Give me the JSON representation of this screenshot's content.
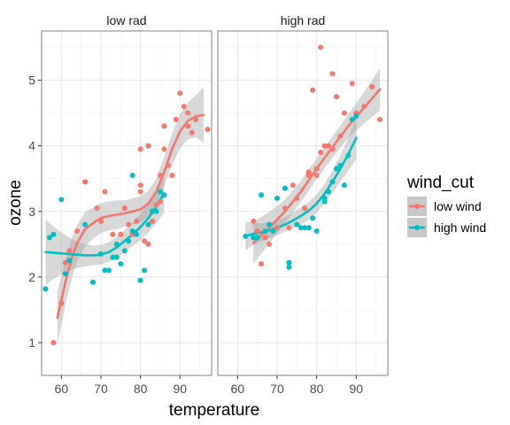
{
  "chart_data": {
    "type": "scatter",
    "xlabel": "temperature",
    "ylabel": "ozone",
    "xlim": [
      55,
      98
    ],
    "ylim": [
      0.5,
      5.75
    ],
    "x_ticks": [
      60,
      70,
      80,
      90
    ],
    "y_ticks": [
      1,
      2,
      3,
      4,
      5
    ],
    "grid": true,
    "facet_labels": [
      "low rad",
      "high rad"
    ],
    "legend": {
      "title": "wind_cut",
      "position": "right",
      "entries": [
        "low wind",
        "high wind"
      ]
    },
    "colors": {
      "low wind": "#F8766D",
      "high wind": "#00BFC4",
      "band": "#c8c8c8"
    },
    "panels": [
      {
        "label": "low rad",
        "series": [
          {
            "name": "low wind",
            "points": [
              [
                58,
                1.0
              ],
              [
                60,
                1.6
              ],
              [
                61,
                2.22
              ],
              [
                62,
                2.4
              ],
              [
                64,
                2.7
              ],
              [
                66,
                3.45
              ],
              [
                69,
                3.05
              ],
              [
                70,
                2.85
              ],
              [
                71,
                3.3
              ],
              [
                73,
                2.65
              ],
              [
                75,
                2.65
              ],
              [
                76,
                3.05
              ],
              [
                77,
                2.8
              ],
              [
                78,
                2.65
              ],
              [
                79,
                2.85
              ],
              [
                80,
                3.3
              ],
              [
                80,
                3.4
              ],
              [
                80,
                3.95
              ],
              [
                81,
                2.55
              ],
              [
                82,
                4.0
              ],
              [
                82,
                2.5
              ],
              [
                83,
                2.85
              ],
              [
                84,
                3.1
              ],
              [
                85,
                3.15
              ],
              [
                85,
                3.55
              ],
              [
                86,
                3.95
              ],
              [
                86,
                4.3
              ],
              [
                87,
                3.7
              ],
              [
                88,
                3.55
              ],
              [
                89,
                4.4
              ],
              [
                90,
                4.8
              ],
              [
                91,
                4.6
              ],
              [
                92,
                4.3
              ],
              [
                92,
                4.5
              ],
              [
                93,
                4.2
              ],
              [
                94,
                4.4
              ],
              [
                97,
                4.25
              ]
            ],
            "smooth": [
              [
                59,
                1.38
              ],
              [
                60,
                1.65
              ],
              [
                61,
                1.92
              ],
              [
                62,
                2.15
              ],
              [
                63,
                2.35
              ],
              [
                64,
                2.52
              ],
              [
                66,
                2.73
              ],
              [
                68,
                2.82
              ],
              [
                70,
                2.9
              ],
              [
                72,
                2.93
              ],
              [
                74,
                2.95
              ],
              [
                76,
                2.97
              ],
              [
                78,
                3.0
              ],
              [
                80,
                3.03
              ],
              [
                82,
                3.12
              ],
              [
                84,
                3.3
              ],
              [
                86,
                3.6
              ],
              [
                88,
                3.95
              ],
              [
                90,
                4.22
              ],
              [
                92,
                4.38
              ],
              [
                94,
                4.45
              ],
              [
                96,
                4.47
              ]
            ],
            "band_halfwidth": [
              0.4,
              0.38,
              0.35,
              0.32,
              0.3,
              0.28,
              0.26,
              0.24,
              0.23,
              0.22,
              0.22,
              0.2,
              0.2,
              0.2,
              0.2,
              0.2,
              0.22,
              0.24,
              0.26,
              0.28,
              0.32,
              0.42
            ]
          },
          {
            "name": "high wind",
            "points": [
              [
                56,
                1.82
              ],
              [
                57,
                2.6
              ],
              [
                58,
                2.65
              ],
              [
                60,
                3.18
              ],
              [
                61,
                2.05
              ],
              [
                62,
                2.25
              ],
              [
                66,
                2.8
              ],
              [
                68,
                1.92
              ],
              [
                70,
                2.35
              ],
              [
                71,
                2.1
              ],
              [
                72,
                2.1
              ],
              [
                73,
                2.3
              ],
              [
                74,
                2.3
              ],
              [
                74,
                2.5
              ],
              [
                75,
                2.2
              ],
              [
                76,
                2.4
              ],
              [
                77,
                2.55
              ],
              [
                78,
                2.7
              ],
              [
                78,
                3.55
              ],
              [
                79,
                2.65
              ],
              [
                80,
                1.95
              ],
              [
                81,
                2.1
              ],
              [
                82,
                2.8
              ],
              [
                83,
                3.0
              ],
              [
                84,
                3.0
              ],
              [
                85,
                3.3
              ],
              [
                86,
                3.25
              ]
            ],
            "smooth": [
              [
                56,
                2.38
              ],
              [
                58,
                2.37
              ],
              [
                60,
                2.36
              ],
              [
                62,
                2.35
              ],
              [
                64,
                2.34
              ],
              [
                66,
                2.33
              ],
              [
                68,
                2.33
              ],
              [
                70,
                2.34
              ],
              [
                72,
                2.38
              ],
              [
                74,
                2.45
              ],
              [
                76,
                2.55
              ],
              [
                78,
                2.65
              ],
              [
                80,
                2.76
              ],
              [
                82,
                2.9
              ],
              [
                84,
                3.07
              ],
              [
                86,
                3.28
              ]
            ],
            "band_halfwidth": [
              0.5,
              0.4,
              0.32,
              0.25,
              0.2,
              0.17,
              0.15,
              0.15,
              0.15,
              0.16,
              0.17,
              0.18,
              0.2,
              0.22,
              0.25,
              0.3
            ]
          }
        ]
      },
      {
        "label": "high rad",
        "series": [
          {
            "name": "low wind",
            "points": [
              [
                64,
                2.85
              ],
              [
                65,
                2.7
              ],
              [
                66,
                2.2
              ],
              [
                67,
                2.6
              ],
              [
                68,
                2.5
              ],
              [
                70,
                2.75
              ],
              [
                72,
                3.05
              ],
              [
                73,
                2.75
              ],
              [
                74,
                3.4
              ],
              [
                75,
                3.2
              ],
              [
                77,
                3.05
              ],
              [
                78,
                3.55
              ],
              [
                78,
                3.6
              ],
              [
                79,
                4.85
              ],
              [
                80,
                3.65
              ],
              [
                80,
                3.55
              ],
              [
                81,
                3.9
              ],
              [
                81,
                5.5
              ],
              [
                82,
                4.0
              ],
              [
                83,
                4.0
              ],
              [
                84,
                5.1
              ],
              [
                84,
                3.95
              ],
              [
                85,
                4.75
              ],
              [
                86,
                4.15
              ],
              [
                87,
                4.5
              ],
              [
                89,
                4.95
              ],
              [
                90,
                4.5
              ],
              [
                92,
                4.6
              ],
              [
                94,
                4.9
              ],
              [
                96,
                4.4
              ]
            ],
            "smooth": [
              [
                64,
                2.52
              ],
              [
                68,
                2.75
              ],
              [
                72,
                3.0
              ],
              [
                76,
                3.3
              ],
              [
                80,
                3.65
              ],
              [
                84,
                3.98
              ],
              [
                88,
                4.3
              ],
              [
                92,
                4.58
              ],
              [
                96,
                4.86
              ]
            ],
            "band_halfwidth": [
              0.32,
              0.24,
              0.18,
              0.16,
              0.16,
              0.16,
              0.18,
              0.24,
              0.32
            ]
          },
          {
            "name": "high wind",
            "points": [
              [
                62,
                2.62
              ],
              [
                64,
                2.6
              ],
              [
                65,
                2.6
              ],
              [
                66,
                3.25
              ],
              [
                67,
                2.7
              ],
              [
                68,
                2.8
              ],
              [
                69,
                2.7
              ],
              [
                70,
                3.2
              ],
              [
                72,
                3.35
              ],
              [
                73,
                2.15
              ],
              [
                73,
                2.22
              ],
              [
                75,
                2.8
              ],
              [
                76,
                2.75
              ],
              [
                77,
                2.75
              ],
              [
                78,
                2.75
              ],
              [
                79,
                2.9
              ],
              [
                80,
                2.7
              ],
              [
                82,
                3.15
              ],
              [
                82,
                3.2
              ],
              [
                83,
                3.3
              ],
              [
                84,
                3.45
              ],
              [
                85,
                3.65
              ],
              [
                86,
                3.7
              ],
              [
                87,
                3.4
              ],
              [
                88,
                3.85
              ],
              [
                89,
                4.4
              ],
              [
                90,
                4.45
              ]
            ],
            "smooth": [
              [
                62,
                2.62
              ],
              [
                64,
                2.66
              ],
              [
                66,
                2.68
              ],
              [
                68,
                2.71
              ],
              [
                70,
                2.75
              ],
              [
                72,
                2.8
              ],
              [
                74,
                2.86
              ],
              [
                76,
                2.93
              ],
              [
                78,
                3.01
              ],
              [
                80,
                3.12
              ],
              [
                82,
                3.27
              ],
              [
                84,
                3.45
              ],
              [
                86,
                3.65
              ],
              [
                88,
                3.87
              ],
              [
                90,
                4.12
              ]
            ],
            "band_halfwidth": [
              0.22,
              0.17,
              0.14,
              0.12,
              0.11,
              0.11,
              0.12,
              0.13,
              0.14,
              0.14,
              0.15,
              0.17,
              0.2,
              0.25,
              0.32
            ]
          }
        ]
      }
    ]
  }
}
